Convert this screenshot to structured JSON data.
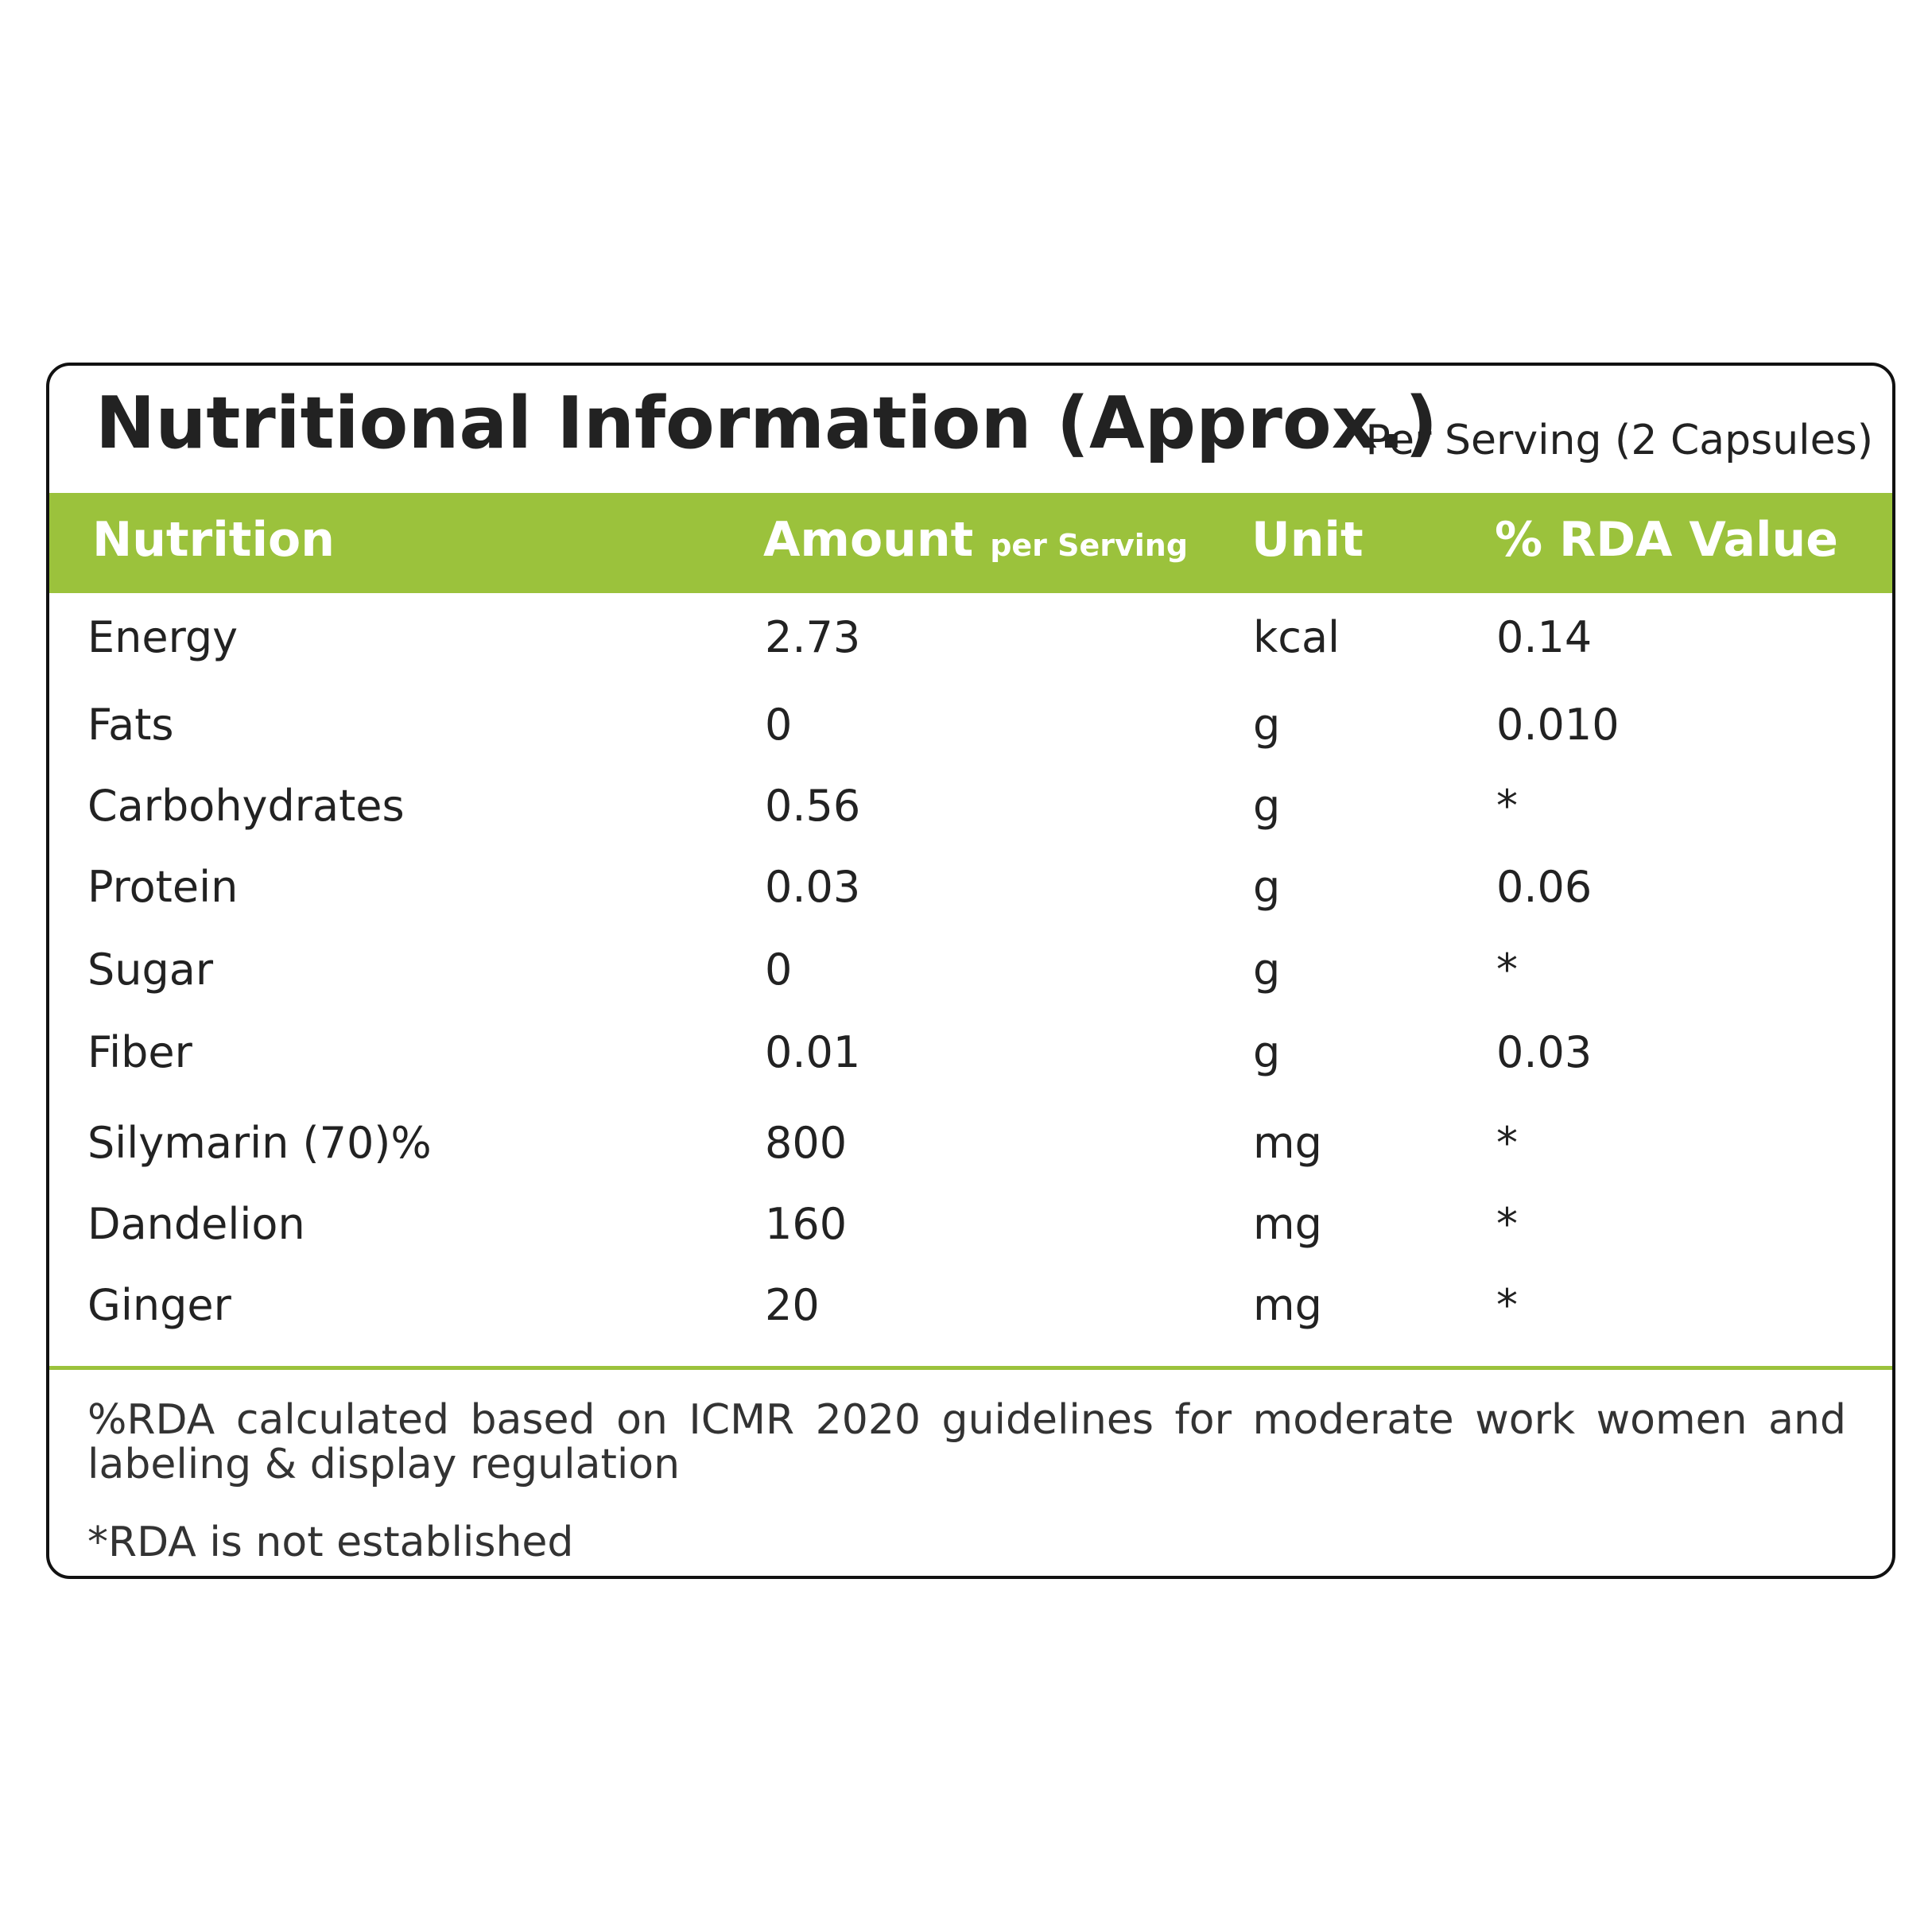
{
  "title": "Nutritional Information (Approx.)",
  "subtitle": "Per Serving (2 Capsules)",
  "table": {
    "header": [
      "Nutrition",
      "Amount",
      "Unit",
      "% RDA Value"
    ],
    "header_note": "per Serving",
    "rows": [
      [
        "Energy",
        "2.73",
        "kcal",
        "0.14"
      ],
      [
        "Fats",
        "0",
        "g",
        "0.010"
      ],
      [
        "Carbohydrates",
        "0.56",
        "g",
        "*"
      ],
      [
        "Protein",
        "0.03",
        "g",
        "0.06"
      ],
      [
        "Sugar",
        "0",
        "g",
        "*"
      ],
      [
        "Fiber",
        "0.01",
        "g",
        "0.03"
      ],
      [
        "Silymarin (70)%",
        "800",
        "mg",
        "*"
      ],
      [
        "Dandelion",
        "160",
        "mg",
        "*"
      ],
      [
        "Ginger",
        "20",
        "mg",
        "*"
      ]
    ]
  },
  "notes": [
    "%RDA calculated based on ICMR 2020 guidelines for moderate work women and labeling & display regulation",
    "*RDA is not established"
  ]
}
